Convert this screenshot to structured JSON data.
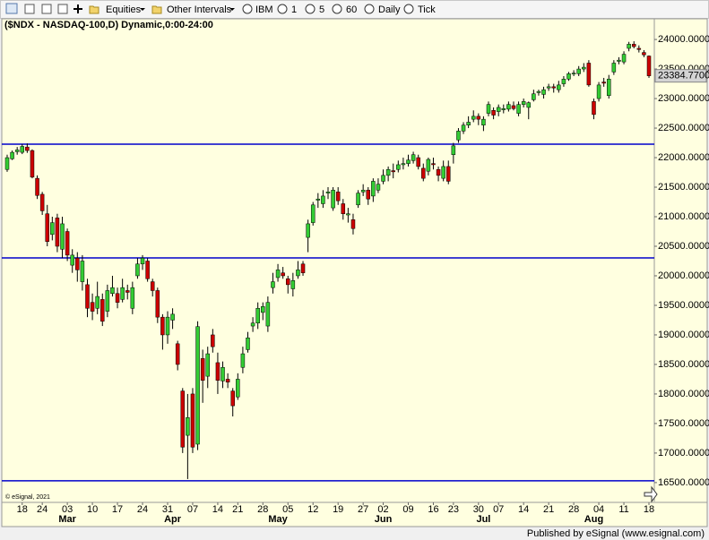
{
  "toolbar": {
    "items": [
      "Equities",
      "Other Intervals",
      "IBM",
      "1",
      "5",
      "60",
      "Daily",
      "Tick"
    ]
  },
  "chart_data": {
    "type": "candlestick",
    "title": "($NDX - NASDAQ-100,D) Dynamic,0:00-24:00",
    "watermark": "© eSignal, 2021",
    "footer": "Published by eSignal (www.esignal.com)",
    "up_color": "#33cc33",
    "down_color": "#cc0000",
    "background": "#ffffe0",
    "line_color": "#0000cc",
    "open": [
      21800,
      21980,
      22100,
      22090,
      22180,
      22120,
      21650,
      21380,
      21050,
      20700,
      20980,
      20450,
      20750,
      20180,
      20300,
      19900,
      19850,
      19550,
      19450,
      19600,
      19400,
      19700,
      19700,
      19600,
      19750,
      19450,
      20000,
      20200,
      20250,
      19900,
      19750,
      19300,
      19000,
      19250,
      18850,
      18050,
      17300,
      18000,
      17150,
      18600,
      18300,
      19000,
      18530,
      18220,
      18250,
      18050,
      17950,
      18450,
      18750,
      19150,
      19200,
      19380,
      19150,
      19800,
      19970,
      20050,
      19950,
      19780,
      20000,
      20200,
      20650,
      20900,
      21280,
      21220,
      21400,
      21150,
      21420,
      21220,
      21030,
      20950,
      21200,
      21420,
      21450,
      21350,
      21450,
      21600,
      21700,
      21780,
      21800,
      21880,
      21900,
      21950,
      22000,
      21820,
      21770,
      21900,
      21800,
      21650,
      21850,
      22050,
      22300,
      22450,
      22550,
      22650,
      22700,
      22550,
      22750,
      22800,
      22780,
      22810,
      22820,
      22880,
      22750,
      22900,
      22850,
      22980,
      23100,
      23070,
      23180,
      23200,
      23150,
      23250,
      23330,
      23420,
      23420,
      23500,
      23600,
      22950,
      23000,
      23280,
      23050,
      23450,
      23630,
      23620,
      23850,
      23920,
      23850,
      23780,
      23720
    ],
    "high": [
      22050,
      22120,
      22180,
      22230,
      22240,
      22140,
      21700,
      21420,
      21200,
      21000,
      21050,
      21000,
      20800,
      20450,
      20400,
      20350,
      19950,
      19700,
      19900,
      19700,
      19850,
      20000,
      19800,
      19950,
      19850,
      19900,
      20300,
      20350,
      20300,
      19950,
      19800,
      19350,
      19400,
      19450,
      18900,
      18100,
      18000,
      18100,
      19230,
      18750,
      18800,
      19100,
      18700,
      18550,
      18350,
      18100,
      18350,
      18800,
      19050,
      19300,
      19550,
      19550,
      19650,
      20050,
      20200,
      20150,
      20000,
      20050,
      20250,
      20250,
      20950,
      21250,
      21400,
      21450,
      21500,
      21500,
      21500,
      21300,
      21150,
      21050,
      21450,
      21550,
      21500,
      21650,
      21650,
      21800,
      21850,
      21900,
      21950,
      22000,
      22050,
      22100,
      22050,
      21900,
      22000,
      22000,
      21850,
      21950,
      21950,
      22250,
      22500,
      22600,
      22700,
      22800,
      22750,
      22700,
      22950,
      22850,
      22900,
      22900,
      22950,
      22950,
      22950,
      23000,
      22950,
      23150,
      23150,
      23200,
      23250,
      23250,
      23300,
      23380,
      23450,
      23480,
      23550,
      23600,
      23650,
      23000,
      23280,
      23350,
      23400,
      23650,
      23700,
      23800,
      23960,
      23970,
      23900,
      23820,
      23730
    ],
    "low": [
      21760,
      21960,
      22050,
      22060,
      22080,
      21650,
      21300,
      21030,
      20500,
      20600,
      20400,
      20300,
      20250,
      20050,
      19900,
      19750,
      19300,
      19250,
      19350,
      19150,
      19300,
      19650,
      19450,
      19550,
      19600,
      19350,
      19950,
      20100,
      19900,
      19650,
      19200,
      18750,
      18850,
      19100,
      18400,
      17000,
      16560,
      17000,
      17050,
      17850,
      18100,
      18700,
      18000,
      18100,
      18100,
      17620,
      17900,
      18350,
      18700,
      19050,
      19100,
      19250,
      19050,
      19700,
      19900,
      19950,
      19700,
      19650,
      19950,
      20000,
      20400,
      20850,
      21150,
      21150,
      21300,
      21100,
      21200,
      20950,
      20900,
      20700,
      21150,
      21350,
      21200,
      21250,
      21400,
      21550,
      21600,
      21650,
      21750,
      21800,
      21850,
      21900,
      21800,
      21600,
      21700,
      21800,
      21600,
      21600,
      21550,
      21900,
      22250,
      22400,
      22500,
      22600,
      22550,
      22450,
      22700,
      22650,
      22700,
      22750,
      22780,
      22800,
      22700,
      22850,
      22650,
      22950,
      23050,
      23000,
      23130,
      23100,
      23100,
      23200,
      23300,
      23380,
      23380,
      23450,
      23200,
      22650,
      22950,
      23200,
      23000,
      23400,
      23580,
      23580,
      23800,
      23850,
      23780,
      23700,
      23350
    ],
    "close": [
      22000,
      22090,
      22130,
      22190,
      22120,
      21670,
      21360,
      21100,
      20580,
      20900,
      20500,
      20880,
      20350,
      20350,
      20100,
      20250,
      19450,
      19400,
      19650,
      19230,
      19750,
      19800,
      19550,
      19800,
      19720,
      19800,
      20200,
      20300,
      19950,
      19750,
      19300,
      19000,
      19300,
      19350,
      18500,
      17100,
      17600,
      17100,
      19140,
      18230,
      18680,
      18800,
      18230,
      18450,
      18200,
      17800,
      18250,
      18680,
      18950,
      19200,
      19450,
      19480,
      19550,
      19900,
      20100,
      20000,
      19850,
      19920,
      20100,
      20050,
      20880,
      21200,
      21300,
      21350,
      21420,
      21450,
      21270,
      21050,
      21050,
      20800,
      21400,
      21450,
      21300,
      21600,
      21550,
      21700,
      21800,
      21760,
      21880,
      21900,
      21960,
      22050,
      21850,
      21650,
      21970,
      21880,
      21700,
      21850,
      21600,
      22200,
      22450,
      22550,
      22600,
      22700,
      22650,
      22650,
      22900,
      22720,
      22850,
      22830,
      22900,
      22830,
      22900,
      22950,
      22930,
      23080,
      23120,
      23150,
      23200,
      23180,
      23230,
      23330,
      23420,
      23430,
      23500,
      23530,
      23230,
      22730,
      23230,
      23260,
      23330,
      23600,
      23650,
      23750,
      23920,
      23880,
      23830,
      23740,
      23385
    ],
    "hlines": [
      22228,
      20303,
      16530
    ],
    "last_price": {
      "value": 23384.77,
      "label": "23384.7700"
    },
    "xlim": [
      -1.07,
      129.07
    ],
    "ylim": [
      16180,
      24365
    ],
    "yticks": [
      {
        "value": 24000,
        "label": "24000.0000"
      },
      {
        "value": 23500,
        "label": "23500.0000"
      },
      {
        "value": 23000,
        "label": "23000.0000"
      },
      {
        "value": 22500,
        "label": "22500.0000"
      },
      {
        "value": 22000,
        "label": "22000.0000"
      },
      {
        "value": 21500,
        "label": "21500.0000"
      },
      {
        "value": 21000,
        "label": "21000.0000"
      },
      {
        "value": 20500,
        "label": "20500.0000"
      },
      {
        "value": 20000,
        "label": "20000.0000"
      },
      {
        "value": 19500,
        "label": "19500.0000"
      },
      {
        "value": 19000,
        "label": "19000.0000"
      },
      {
        "value": 18500,
        "label": "18500.0000"
      },
      {
        "value": 18000,
        "label": "18000.0000"
      },
      {
        "value": 17500,
        "label": "17500.0000"
      },
      {
        "value": 17000,
        "label": "17000.0000"
      },
      {
        "value": 16500,
        "label": "16500.0000"
      }
    ],
    "xticks": [
      {
        "value": 3,
        "label": "18"
      },
      {
        "value": 7,
        "label": "24"
      },
      {
        "value": 12,
        "label": "03"
      },
      {
        "value": 17,
        "label": "10"
      },
      {
        "value": 22,
        "label": "17"
      },
      {
        "value": 27,
        "label": "24"
      },
      {
        "value": 32,
        "label": "31"
      },
      {
        "value": 37,
        "label": "07"
      },
      {
        "value": 42,
        "label": "14"
      },
      {
        "value": 46,
        "label": "21"
      },
      {
        "value": 51,
        "label": "28"
      },
      {
        "value": 56,
        "label": "05"
      },
      {
        "value": 61,
        "label": "12"
      },
      {
        "value": 66,
        "label": "19"
      },
      {
        "value": 71,
        "label": "27"
      },
      {
        "value": 75,
        "label": "02"
      },
      {
        "value": 80,
        "label": "09"
      },
      {
        "value": 85,
        "label": "16"
      },
      {
        "value": 89,
        "label": "23"
      },
      {
        "value": 94,
        "label": "30"
      },
      {
        "value": 98,
        "label": "07"
      },
      {
        "value": 103,
        "label": "14"
      },
      {
        "value": 108,
        "label": "21"
      },
      {
        "value": 113,
        "label": "28"
      },
      {
        "value": 118,
        "label": "04"
      },
      {
        "value": 123,
        "label": "11"
      },
      {
        "value": 128,
        "label": "18"
      }
    ],
    "xmonths": [
      {
        "value": 12,
        "label": "Mar"
      },
      {
        "value": 33,
        "label": "Apr"
      },
      {
        "value": 54,
        "label": "May"
      },
      {
        "value": 75,
        "label": "Jun"
      },
      {
        "value": 95,
        "label": "Jul"
      },
      {
        "value": 117,
        "label": "Aug"
      }
    ]
  }
}
